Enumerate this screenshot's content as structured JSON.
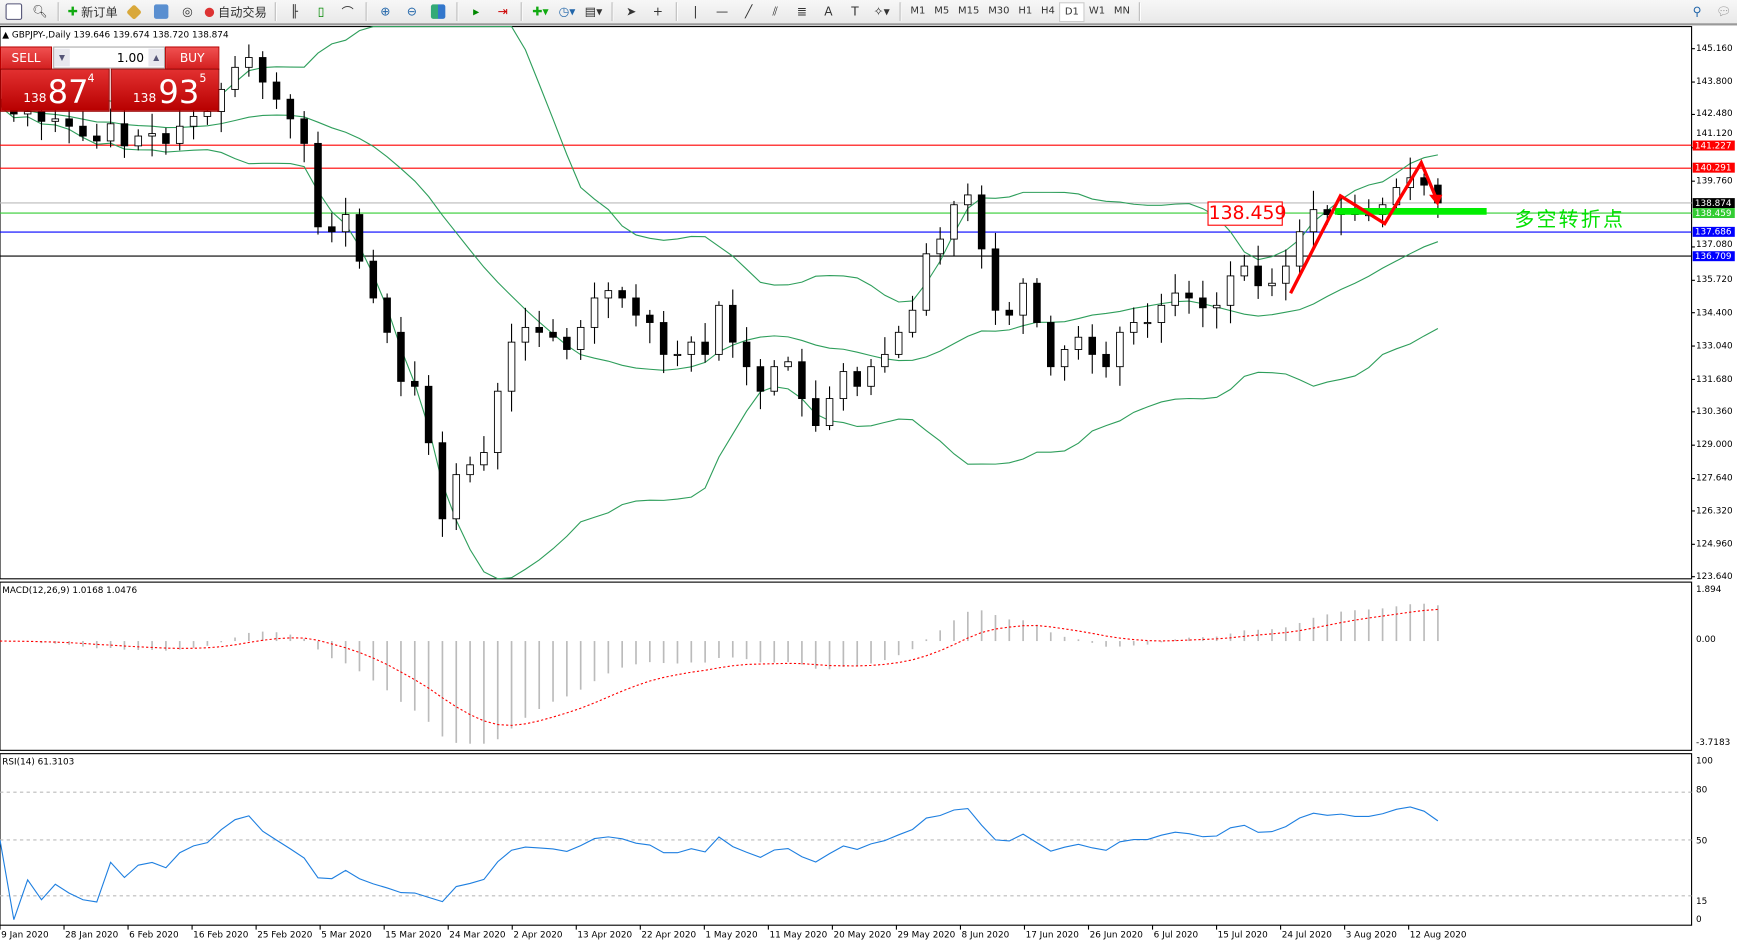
{
  "toolbar": {
    "new_order_label": "新订单",
    "auto_trade_label": "自动交易",
    "timeframes": [
      "M1",
      "M5",
      "M15",
      "M30",
      "H1",
      "H4",
      "D1",
      "W1",
      "MN"
    ],
    "active_timeframe": "D1",
    "text_tool_label": "A"
  },
  "chart_header": {
    "marker": "▲",
    "symbol": "GBPJPY-,Daily",
    "ohlc": "139.646 139.674 138.720 138.874"
  },
  "trade_panel": {
    "sell_label": "SELL",
    "buy_label": "BUY",
    "lot_value": "1.00",
    "sell_price": {
      "small": "138",
      "big": "87",
      "pip": "4"
    },
    "buy_price": {
      "small": "138",
      "big": "93",
      "pip": "5"
    }
  },
  "colors": {
    "resistance": "#ff0000",
    "support": "#0000ff",
    "pivot": "#33cc33",
    "bands": "#2e9e5b",
    "rsi": "#1e7fe0",
    "macd_signal": "#ff0000"
  },
  "price_axis": {
    "ticks": [
      "145.160",
      "143.800",
      "142.480",
      "141.120",
      "139.760",
      "137.080",
      "135.720",
      "134.400",
      "133.040",
      "131.680",
      "130.360",
      "129.000",
      "127.640",
      "126.320",
      "124.960",
      "123.640"
    ],
    "tick_values": [
      145.16,
      143.8,
      142.48,
      141.12,
      139.76,
      137.08,
      135.72,
      134.4,
      133.04,
      131.68,
      130.36,
      129.0,
      127.64,
      126.32,
      124.96,
      123.64
    ],
    "range": [
      123.64,
      145.16
    ]
  },
  "levels": [
    {
      "label": "141.227",
      "value": 141.227,
      "color": "#ff0000",
      "line": "#ff0000"
    },
    {
      "label": "140.291",
      "value": 140.291,
      "color": "#ff0000",
      "line": "#ff0000"
    },
    {
      "label": "138.874",
      "value": 138.874,
      "color": "#000000",
      "line": "#bbbbbb"
    },
    {
      "label": "138.459",
      "value": 138.459,
      "color": "#33cc33",
      "line": "#33cc33"
    },
    {
      "label": "137.686",
      "value": 137.686,
      "color": "#0000ff",
      "line": "#0000ff"
    },
    {
      "label": "136.709",
      "value": 136.709,
      "color": "#0000ff",
      "line": "#000000"
    }
  ],
  "annotations": {
    "price_box": "138.459",
    "text": "多空转折点"
  },
  "macd": {
    "label": "MACD(12,26,9) 1.0168 1.0476",
    "axis": [
      "1.894",
      "0.00",
      "-3.7183"
    ],
    "range": [
      -3.7183,
      1.894
    ]
  },
  "rsi": {
    "label": "RSI(14) 61.3103",
    "axis": [
      "100",
      "80",
      "50",
      "15",
      "0"
    ],
    "levels": [
      80,
      50,
      15
    ]
  },
  "dates": [
    "9 Jan 2020",
    "28 Jan 2020",
    "6 Feb 2020",
    "16 Feb 2020",
    "25 Feb 2020",
    "5 Mar 2020",
    "15 Mar 2020",
    "24 Mar 2020",
    "2 Apr 2020",
    "13 Apr 2020",
    "22 Apr 2020",
    "1 May 2020",
    "11 May 2020",
    "20 May 2020",
    "29 May 2020",
    "8 Jun 2020",
    "17 Jun 2020",
    "26 Jun 2020",
    "6 Jul 2020",
    "15 Jul 2020",
    "24 Jul 2020",
    "3 Aug 2020",
    "12 Aug 2020"
  ],
  "chart_data": {
    "type": "candlestick",
    "symbol": "GBPJPY",
    "timeframe": "Daily",
    "closes": [
      142.8,
      142.5,
      142.6,
      142.2,
      142.3,
      142.0,
      141.6,
      141.4,
      142.1,
      141.2,
      141.6,
      141.7,
      141.3,
      142.0,
      142.4,
      142.6,
      143.5,
      144.4,
      144.8,
      143.8,
      143.1,
      142.3,
      141.3,
      137.9,
      137.7,
      138.4,
      136.5,
      135.0,
      133.6,
      131.6,
      131.4,
      129.1,
      126.0,
      127.8,
      128.2,
      128.7,
      131.2,
      133.2,
      133.8,
      133.6,
      133.4,
      132.9,
      133.8,
      135.0,
      135.3,
      135.0,
      134.3,
      134.0,
      132.7,
      132.7,
      133.2,
      132.7,
      134.7,
      133.2,
      132.2,
      131.2,
      132.2,
      132.4,
      130.9,
      129.8,
      130.9,
      132.0,
      131.4,
      132.2,
      132.7,
      133.6,
      134.5,
      136.8,
      137.4,
      138.8,
      139.2,
      137.0,
      134.5,
      134.3,
      135.6,
      134.0,
      132.2,
      132.9,
      133.4,
      132.7,
      132.2,
      133.6,
      134.0,
      134.0,
      134.7,
      135.2,
      135.0,
      134.6,
      134.7,
      135.9,
      136.3,
      135.5,
      135.6,
      136.3,
      137.7,
      138.6,
      138.4,
      138.6,
      138.4,
      138.4,
      138.8,
      139.5,
      139.9,
      139.6,
      138.874
    ],
    "indicators": [
      "Bollinger Bands",
      "MACD(12,26,9)",
      "RSI(14)"
    ]
  }
}
